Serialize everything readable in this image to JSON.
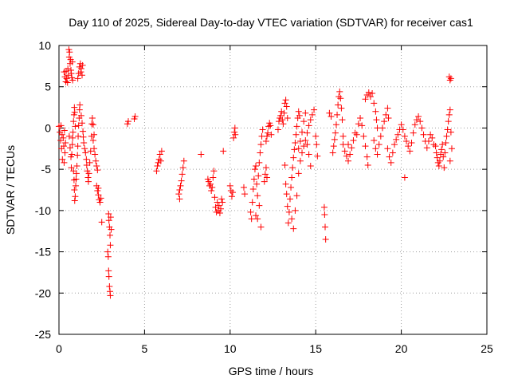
{
  "chart_data": {
    "type": "scatter",
    "title": "Day 110 of 2025, Sidereal Day-to-day VTEC variation (SDTVAR) for receiver cas1",
    "xlabel": "GPS time / hours",
    "ylabel": "SDTVAR / TECUs",
    "xlim": [
      0,
      25
    ],
    "ylim": [
      -25,
      10
    ],
    "xticks": [
      0,
      5,
      10,
      15,
      20,
      25
    ],
    "yticks": [
      10,
      5,
      0,
      -5,
      -10,
      -15,
      -20,
      -25
    ],
    "grid": true,
    "marker": "+",
    "color": "#ff0000",
    "points": [
      [
        0.0,
        0.2
      ],
      [
        0.05,
        -0.5
      ],
      [
        0.1,
        -1.5
      ],
      [
        0.12,
        0.3
      ],
      [
        0.15,
        -2.5
      ],
      [
        0.18,
        -0.8
      ],
      [
        0.2,
        -3.8
      ],
      [
        0.25,
        -1.2
      ],
      [
        0.28,
        -2.2
      ],
      [
        0.3,
        -4.2
      ],
      [
        0.32,
        -0.3
      ],
      [
        0.35,
        -3.0
      ],
      [
        0.38,
        -1.8
      ],
      [
        0.3,
        6.8
      ],
      [
        0.35,
        6.2
      ],
      [
        0.4,
        5.6
      ],
      [
        0.42,
        6.9
      ],
      [
        0.45,
        6.0
      ],
      [
        0.5,
        5.5
      ],
      [
        0.52,
        7.2
      ],
      [
        0.55,
        6.4
      ],
      [
        0.58,
        9.5
      ],
      [
        0.6,
        8.6
      ],
      [
        0.62,
        9.2
      ],
      [
        0.65,
        7.8
      ],
      [
        0.68,
        8.3
      ],
      [
        0.7,
        7.0
      ],
      [
        0.72,
        6.6
      ],
      [
        0.75,
        6.1
      ],
      [
        0.78,
        8.0
      ],
      [
        0.8,
        5.8
      ],
      [
        0.6,
        -1.0
      ],
      [
        0.65,
        -2.4
      ],
      [
        0.7,
        -3.5
      ],
      [
        0.72,
        -4.8
      ],
      [
        0.75,
        -3.2
      ],
      [
        0.78,
        -2.0
      ],
      [
        0.8,
        -1.2
      ],
      [
        0.82,
        -0.5
      ],
      [
        0.85,
        0.8
      ],
      [
        0.88,
        1.6
      ],
      [
        0.9,
        2.5
      ],
      [
        0.92,
        1.9
      ],
      [
        0.95,
        0.2
      ],
      [
        0.85,
        -5.2
      ],
      [
        0.88,
        -6.3
      ],
      [
        0.9,
        -7.5
      ],
      [
        0.92,
        -8.8
      ],
      [
        0.95,
        -8.3
      ],
      [
        0.98,
        -7.0
      ],
      [
        1.0,
        -6.2
      ],
      [
        1.02,
        -5.5
      ],
      [
        1.05,
        -4.6
      ],
      [
        1.08,
        -3.3
      ],
      [
        1.1,
        -2.2
      ],
      [
        1.12,
        -1.0
      ],
      [
        1.15,
        0.3
      ],
      [
        1.18,
        1.2
      ],
      [
        1.2,
        2.2
      ],
      [
        1.22,
        2.8
      ],
      [
        1.1,
        6.0
      ],
      [
        1.15,
        6.6
      ],
      [
        1.2,
        7.4
      ],
      [
        1.25,
        7.8
      ],
      [
        1.28,
        6.8
      ],
      [
        1.3,
        7.2
      ],
      [
        1.35,
        6.4
      ],
      [
        1.38,
        7.6
      ],
      [
        1.3,
        1.5
      ],
      [
        1.35,
        0.6
      ],
      [
        1.4,
        -0.4
      ],
      [
        1.42,
        -1.1
      ],
      [
        1.45,
        -1.8
      ],
      [
        1.5,
        -2.5
      ],
      [
        1.55,
        -3.0
      ],
      [
        1.6,
        -3.8
      ],
      [
        1.62,
        -4.5
      ],
      [
        1.65,
        -5.2
      ],
      [
        1.7,
        -6.0
      ],
      [
        1.72,
        -6.5
      ],
      [
        1.75,
        -5.5
      ],
      [
        1.8,
        -4.2
      ],
      [
        1.85,
        -2.8
      ],
      [
        1.9,
        -1.0
      ],
      [
        1.92,
        0.5
      ],
      [
        1.95,
        1.2
      ],
      [
        2.0,
        -1.5
      ],
      [
        2.05,
        -2.5
      ],
      [
        2.1,
        -3.2
      ],
      [
        2.15,
        -4.0
      ],
      [
        2.2,
        -4.6
      ],
      [
        2.25,
        -5.1
      ],
      [
        2.0,
        0.4
      ],
      [
        2.05,
        -0.8
      ],
      [
        2.2,
        -7.0
      ],
      [
        2.25,
        -7.6
      ],
      [
        2.3,
        -8.1
      ],
      [
        2.35,
        -8.7
      ],
      [
        2.4,
        -9.0
      ],
      [
        2.45,
        -8.5
      ],
      [
        2.3,
        -7.3
      ],
      [
        2.5,
        -11.4
      ],
      [
        2.9,
        -10.4
      ],
      [
        2.92,
        -11.2
      ],
      [
        2.95,
        -12.0
      ],
      [
        2.98,
        -13.0
      ],
      [
        3.0,
        -14.2
      ],
      [
        2.85,
        -15.0
      ],
      [
        2.88,
        -15.6
      ],
      [
        2.9,
        -17.3
      ],
      [
        2.92,
        -18.0
      ],
      [
        2.95,
        -19.2
      ],
      [
        2.98,
        -19.8
      ],
      [
        3.0,
        -20.3
      ],
      [
        3.02,
        -10.8
      ],
      [
        3.05,
        -12.3
      ],
      [
        4.0,
        0.5
      ],
      [
        4.05,
        0.8
      ],
      [
        4.4,
        1.1
      ],
      [
        4.45,
        1.4
      ],
      [
        5.7,
        -5.2
      ],
      [
        5.75,
        -4.6
      ],
      [
        5.8,
        -4.2
      ],
      [
        5.85,
        -3.8
      ],
      [
        5.9,
        -3.2
      ],
      [
        5.95,
        -4.0
      ],
      [
        6.0,
        -2.8
      ],
      [
        7.0,
        -8.0
      ],
      [
        7.05,
        -7.5
      ],
      [
        7.1,
        -7.0
      ],
      [
        7.15,
        -6.4
      ],
      [
        7.2,
        -5.6
      ],
      [
        7.25,
        -4.8
      ],
      [
        7.3,
        -4.0
      ],
      [
        7.05,
        -8.6
      ],
      [
        8.3,
        -3.2
      ],
      [
        8.7,
        -6.2
      ],
      [
        8.75,
        -6.5
      ],
      [
        8.8,
        -7.0
      ],
      [
        8.85,
        -6.8
      ],
      [
        8.9,
        -7.6
      ],
      [
        8.95,
        -7.2
      ],
      [
        9.0,
        -6.0
      ],
      [
        9.05,
        -5.2
      ],
      [
        9.1,
        -8.4
      ],
      [
        9.15,
        -9.6
      ],
      [
        9.2,
        -10.2
      ],
      [
        9.25,
        -9.0
      ],
      [
        9.3,
        -10.0
      ],
      [
        9.35,
        -9.4
      ],
      [
        9.4,
        -10.3
      ],
      [
        9.45,
        -9.8
      ],
      [
        9.5,
        -8.6
      ],
      [
        9.55,
        -9.0
      ],
      [
        9.6,
        -2.8
      ],
      [
        10.0,
        -7.0
      ],
      [
        10.05,
        -7.6
      ],
      [
        10.1,
        -8.3
      ],
      [
        10.15,
        -7.8
      ],
      [
        10.2,
        -1.2
      ],
      [
        10.25,
        -0.5
      ],
      [
        10.28,
        0.0
      ],
      [
        10.3,
        -0.8
      ],
      [
        10.8,
        -7.2
      ],
      [
        10.85,
        -8.0
      ],
      [
        11.2,
        -10.2
      ],
      [
        11.25,
        -11.0
      ],
      [
        11.3,
        -9.0
      ],
      [
        11.35,
        -7.4
      ],
      [
        11.4,
        -6.2
      ],
      [
        11.45,
        -5.0
      ],
      [
        11.5,
        -4.6
      ],
      [
        11.55,
        -6.8
      ],
      [
        11.6,
        -8.2
      ],
      [
        11.65,
        -5.8
      ],
      [
        11.7,
        -4.2
      ],
      [
        11.75,
        -3.0
      ],
      [
        11.8,
        -2.0
      ],
      [
        11.85,
        -1.0
      ],
      [
        11.9,
        -0.2
      ],
      [
        11.5,
        -10.6
      ],
      [
        11.6,
        -11.0
      ],
      [
        11.7,
        -9.4
      ],
      [
        11.8,
        -12.0
      ],
      [
        12.0,
        -6.5
      ],
      [
        12.05,
        -5.6
      ],
      [
        12.1,
        -4.8
      ],
      [
        12.15,
        -6.0
      ],
      [
        12.1,
        -1.6
      ],
      [
        12.15,
        -1.0
      ],
      [
        12.2,
        -0.6
      ],
      [
        12.25,
        0.2
      ],
      [
        12.3,
        0.6
      ],
      [
        12.35,
        0.3
      ],
      [
        12.4,
        -0.8
      ],
      [
        12.8,
        -0.2
      ],
      [
        12.85,
        0.8
      ],
      [
        12.9,
        1.2
      ],
      [
        12.95,
        1.5
      ],
      [
        13.0,
        2.0
      ],
      [
        13.05,
        1.0
      ],
      [
        13.1,
        0.5
      ],
      [
        13.15,
        1.8
      ],
      [
        13.2,
        3.0
      ],
      [
        13.25,
        3.4
      ],
      [
        13.3,
        2.6
      ],
      [
        13.35,
        1.2
      ],
      [
        13.2,
        -4.5
      ],
      [
        13.25,
        -6.8
      ],
      [
        13.3,
        -8.0
      ],
      [
        13.35,
        -9.5
      ],
      [
        13.4,
        -11.5
      ],
      [
        13.45,
        -10.2
      ],
      [
        13.5,
        -8.6
      ],
      [
        13.55,
        -7.2
      ],
      [
        13.6,
        -6.0
      ],
      [
        13.65,
        -4.8
      ],
      [
        13.7,
        -3.6
      ],
      [
        13.75,
        -2.6
      ],
      [
        13.8,
        -1.8
      ],
      [
        13.85,
        -0.8
      ],
      [
        13.9,
        0.2
      ],
      [
        13.95,
        1.2
      ],
      [
        14.0,
        2.0
      ],
      [
        14.05,
        1.5
      ],
      [
        13.6,
        -11.0
      ],
      [
        13.7,
        -12.2
      ],
      [
        13.8,
        -10.0
      ],
      [
        13.9,
        -8.2
      ],
      [
        14.0,
        -5.5
      ],
      [
        14.1,
        -4.0
      ],
      [
        14.2,
        -3.0
      ],
      [
        14.3,
        -2.2
      ],
      [
        14.4,
        -1.5
      ],
      [
        14.5,
        -0.6
      ],
      [
        14.6,
        0.3
      ],
      [
        14.7,
        1.0
      ],
      [
        14.8,
        1.6
      ],
      [
        14.9,
        2.2
      ],
      [
        14.0,
        -2.5
      ],
      [
        14.1,
        -1.6
      ],
      [
        14.2,
        -0.5
      ],
      [
        14.3,
        0.8
      ],
      [
        14.4,
        1.8
      ],
      [
        14.5,
        -2.0
      ],
      [
        14.6,
        -3.2
      ],
      [
        14.7,
        -4.6
      ],
      [
        15.0,
        -1.0
      ],
      [
        15.05,
        -2.0
      ],
      [
        15.1,
        -3.4
      ],
      [
        15.5,
        -9.6
      ],
      [
        15.52,
        -10.5
      ],
      [
        15.55,
        -12.0
      ],
      [
        15.58,
        -13.5
      ],
      [
        15.8,
        1.8
      ],
      [
        15.9,
        1.4
      ],
      [
        16.0,
        -3.0
      ],
      [
        16.05,
        -2.2
      ],
      [
        16.1,
        -1.4
      ],
      [
        16.15,
        -0.6
      ],
      [
        16.2,
        0.4
      ],
      [
        16.25,
        1.6
      ],
      [
        16.3,
        2.8
      ],
      [
        16.35,
        3.8
      ],
      [
        16.4,
        4.4
      ],
      [
        16.45,
        3.6
      ],
      [
        16.5,
        2.4
      ],
      [
        16.55,
        1.0
      ],
      [
        16.6,
        -2.0
      ],
      [
        16.7,
        -2.8
      ],
      [
        16.8,
        -3.4
      ],
      [
        16.9,
        -4.0
      ],
      [
        17.0,
        -3.2
      ],
      [
        17.1,
        -2.4
      ],
      [
        17.2,
        -1.5
      ],
      [
        17.3,
        -0.6
      ],
      [
        16.6,
        -1.0
      ],
      [
        16.9,
        -2.0
      ],
      [
        17.4,
        -0.8
      ],
      [
        17.5,
        0.5
      ],
      [
        17.6,
        1.2
      ],
      [
        17.7,
        0.3
      ],
      [
        17.8,
        -1.0
      ],
      [
        17.9,
        -2.2
      ],
      [
        18.0,
        -3.5
      ],
      [
        18.05,
        -4.5
      ],
      [
        17.9,
        3.5
      ],
      [
        18.0,
        4.0
      ],
      [
        18.1,
        4.3
      ],
      [
        18.2,
        3.8
      ],
      [
        18.3,
        4.2
      ],
      [
        18.4,
        3.0
      ],
      [
        18.5,
        2.0
      ],
      [
        18.55,
        1.0
      ],
      [
        18.6,
        0.0
      ],
      [
        18.4,
        -1.5
      ],
      [
        18.5,
        -2.5
      ],
      [
        18.6,
        -3.2
      ],
      [
        18.7,
        -2.0
      ],
      [
        18.8,
        -1.0
      ],
      [
        18.9,
        0.0
      ],
      [
        19.0,
        0.8
      ],
      [
        19.1,
        1.6
      ],
      [
        19.2,
        2.4
      ],
      [
        19.25,
        1.2
      ],
      [
        19.2,
        -2.5
      ],
      [
        19.3,
        -3.5
      ],
      [
        19.4,
        -4.2
      ],
      [
        19.5,
        -3.0
      ],
      [
        19.6,
        -2.0
      ],
      [
        19.7,
        -1.4
      ],
      [
        19.8,
        -0.8
      ],
      [
        19.9,
        -0.2
      ],
      [
        20.0,
        0.4
      ],
      [
        20.1,
        -0.2
      ],
      [
        20.2,
        -1.0
      ],
      [
        20.3,
        -1.6
      ],
      [
        20.4,
        -2.2
      ],
      [
        20.5,
        -2.8
      ],
      [
        20.6,
        -1.8
      ],
      [
        20.7,
        -0.6
      ],
      [
        20.8,
        0.4
      ],
      [
        20.9,
        1.0
      ],
      [
        21.0,
        1.4
      ],
      [
        21.1,
        0.8
      ],
      [
        21.2,
        0.0
      ],
      [
        21.3,
        -0.8
      ],
      [
        21.4,
        -1.6
      ],
      [
        21.5,
        -2.4
      ],
      [
        21.6,
        -1.6
      ],
      [
        21.7,
        -0.8
      ],
      [
        21.8,
        -1.2
      ],
      [
        21.9,
        -2.0
      ],
      [
        20.2,
        -6.0
      ],
      [
        22.0,
        -2.2
      ],
      [
        22.05,
        -3.0
      ],
      [
        22.1,
        -3.6
      ],
      [
        22.15,
        -4.2
      ],
      [
        22.2,
        -4.6
      ],
      [
        22.25,
        -4.0
      ],
      [
        22.3,
        -3.2
      ],
      [
        22.35,
        -2.6
      ],
      [
        22.4,
        -2.0
      ],
      [
        22.45,
        -3.5
      ],
      [
        22.5,
        -4.8
      ],
      [
        22.55,
        -3.0
      ],
      [
        22.6,
        -1.8
      ],
      [
        22.65,
        -1.0
      ],
      [
        22.7,
        -0.2
      ],
      [
        22.75,
        0.8
      ],
      [
        22.8,
        1.6
      ],
      [
        22.85,
        2.2
      ],
      [
        22.9,
        -0.5
      ],
      [
        22.95,
        -2.5
      ],
      [
        22.85,
        -4.0
      ],
      [
        22.8,
        6.2
      ],
      [
        22.85,
        5.8
      ],
      [
        22.9,
        6.0
      ]
    ]
  }
}
